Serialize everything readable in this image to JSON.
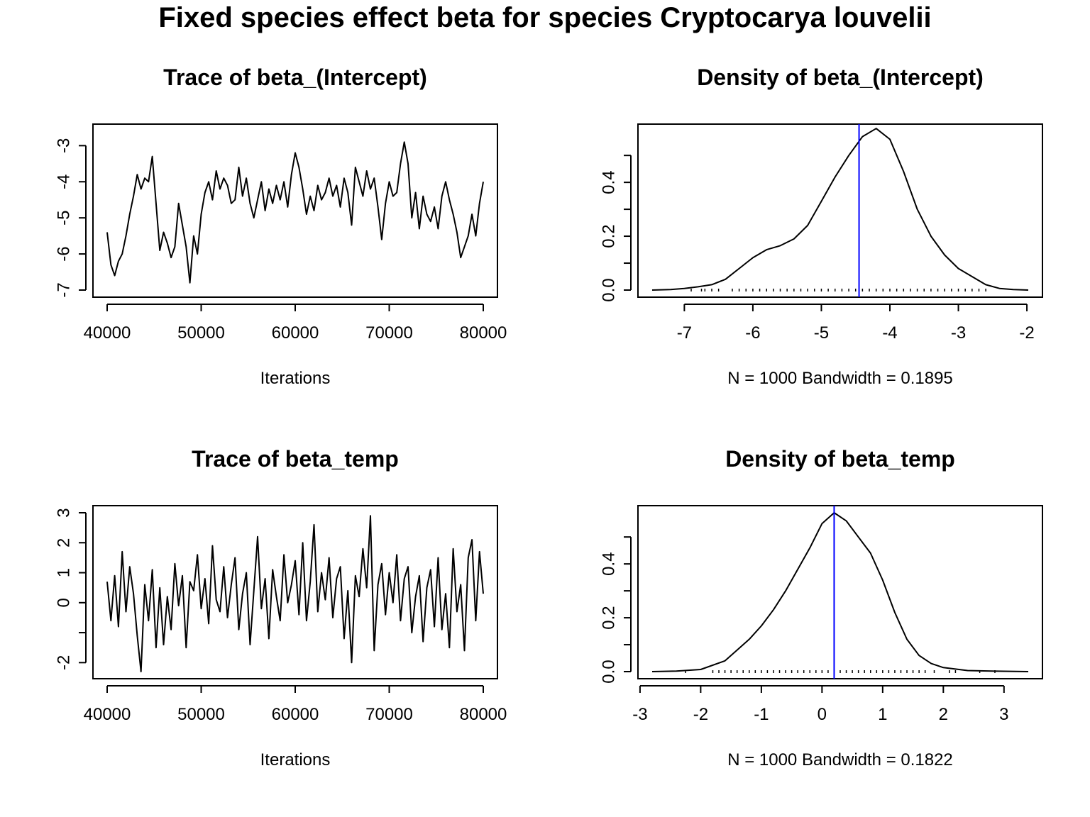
{
  "title": "Fixed species effect beta for species Cryptocarya louvelii",
  "colors": {
    "line": "#000000",
    "mean_line": "#0000ff"
  },
  "chart_data": [
    {
      "id": "trace-intercept",
      "type": "line",
      "title": "Trace of beta_(Intercept)",
      "xlabel": "Iterations",
      "ylabel": "",
      "xlim": [
        40000,
        80000
      ],
      "ylim": [
        -7,
        -2.6
      ],
      "xticks": [
        40000,
        50000,
        60000,
        70000,
        80000
      ],
      "yticks": [
        -7,
        -6,
        -5,
        -4,
        -3
      ],
      "ytick_labels": [
        "-7",
        "-6",
        "-5",
        "-4",
        "-3"
      ],
      "x": [
        40000,
        40400,
        40800,
        41200,
        41600,
        42000,
        42400,
        42800,
        43200,
        43600,
        44000,
        44400,
        44800,
        45200,
        45600,
        46000,
        46400,
        46800,
        47200,
        47600,
        48000,
        48400,
        48800,
        49200,
        49600,
        50000,
        50400,
        50800,
        51200,
        51600,
        52000,
        52400,
        52800,
        53200,
        53600,
        54000,
        54400,
        54800,
        55200,
        55600,
        56000,
        56400,
        56800,
        57200,
        57600,
        58000,
        58400,
        58800,
        59200,
        59600,
        60000,
        60400,
        60800,
        61200,
        61600,
        62000,
        62400,
        62800,
        63200,
        63600,
        64000,
        64400,
        64800,
        65200,
        65600,
        66000,
        66400,
        66800,
        67200,
        67600,
        68000,
        68400,
        68800,
        69200,
        69600,
        70000,
        70400,
        70800,
        71200,
        71600,
        72000,
        72400,
        72800,
        73200,
        73600,
        74000,
        74400,
        74800,
        75200,
        75600,
        76000,
        76400,
        76800,
        77200,
        77600,
        78000,
        78400,
        78800,
        79200,
        79600,
        80000
      ],
      "y": [
        -5.4,
        -6.3,
        -6.6,
        -6.2,
        -6.0,
        -5.5,
        -4.9,
        -4.4,
        -3.8,
        -4.2,
        -3.9,
        -4.0,
        -3.3,
        -4.6,
        -5.9,
        -5.4,
        -5.7,
        -6.1,
        -5.8,
        -4.6,
        -5.2,
        -5.8,
        -6.8,
        -5.5,
        -6.0,
        -4.9,
        -4.3,
        -4.0,
        -4.5,
        -3.7,
        -4.2,
        -3.9,
        -4.1,
        -4.6,
        -4.5,
        -3.6,
        -4.4,
        -3.9,
        -4.6,
        -5.0,
        -4.5,
        -4.0,
        -4.8,
        -4.2,
        -4.6,
        -4.1,
        -4.5,
        -4.0,
        -4.7,
        -3.8,
        -3.2,
        -3.6,
        -4.2,
        -4.9,
        -4.4,
        -4.8,
        -4.1,
        -4.5,
        -4.3,
        -3.9,
        -4.4,
        -4.1,
        -4.7,
        -3.9,
        -4.3,
        -5.2,
        -3.6,
        -4.0,
        -4.4,
        -3.7,
        -4.2,
        -3.9,
        -4.7,
        -5.6,
        -4.6,
        -4.0,
        -4.4,
        -4.3,
        -3.5,
        -2.9,
        -3.5,
        -5.0,
        -4.3,
        -5.3,
        -4.4,
        -4.9,
        -5.1,
        -4.7,
        -5.3,
        -4.4,
        -4.0,
        -4.5,
        -4.9,
        -5.4,
        -6.1,
        -5.8,
        -5.5,
        -4.9,
        -5.5,
        -4.6,
        -4.0
      ]
    },
    {
      "id": "density-intercept",
      "type": "line",
      "title": "Density of beta_(Intercept)",
      "xlabel": "N = 1000   Bandwidth = 0.1895",
      "ylabel": "",
      "xlim": [
        -7.47,
        -1.98
      ],
      "ylim": [
        0,
        0.59
      ],
      "xticks": [
        -7,
        -6,
        -5,
        -4,
        -3,
        -2
      ],
      "yticks": [
        0.0,
        0.1,
        0.2,
        0.3,
        0.4,
        0.5
      ],
      "ytick_labels": [
        "0.0",
        "",
        "0.2",
        "",
        "0.4",
        ""
      ],
      "mean": -4.45,
      "x": [
        -7.47,
        -7.2,
        -7.0,
        -6.8,
        -6.6,
        -6.4,
        -6.2,
        -6.0,
        -5.8,
        -5.6,
        -5.4,
        -5.2,
        -5.0,
        -4.8,
        -4.6,
        -4.4,
        -4.2,
        -4.0,
        -3.8,
        -3.6,
        -3.4,
        -3.2,
        -3.0,
        -2.8,
        -2.6,
        -2.4,
        -2.2,
        -1.98
      ],
      "y": [
        0.0,
        0.002,
        0.006,
        0.012,
        0.02,
        0.04,
        0.08,
        0.12,
        0.15,
        0.165,
        0.19,
        0.24,
        0.33,
        0.42,
        0.5,
        0.57,
        0.6,
        0.56,
        0.44,
        0.3,
        0.2,
        0.13,
        0.08,
        0.05,
        0.02,
        0.006,
        0.002,
        0.0
      ],
      "rug": [
        -6.9,
        -6.75,
        -6.7,
        -6.6,
        -6.5,
        -6.3,
        -6.2,
        -6.1,
        -6.0,
        -5.9,
        -5.8,
        -5.7,
        -5.6,
        -5.5,
        -5.4,
        -5.3,
        -5.2,
        -5.1,
        -5.0,
        -4.9,
        -4.8,
        -4.7,
        -4.6,
        -4.5,
        -4.4,
        -4.3,
        -4.2,
        -4.1,
        -4.0,
        -3.9,
        -3.8,
        -3.7,
        -3.6,
        -3.5,
        -3.4,
        -3.3,
        -3.2,
        -3.1,
        -3.0,
        -2.9,
        -2.8,
        -2.7,
        -2.6
      ]
    },
    {
      "id": "trace-temp",
      "type": "line",
      "title": "Trace of beta_temp",
      "xlabel": "Iterations",
      "ylabel": "",
      "xlim": [
        40000,
        80000
      ],
      "ylim": [
        -2.3,
        3.0
      ],
      "xticks": [
        40000,
        50000,
        60000,
        70000,
        80000
      ],
      "yticks": [
        -2,
        -1,
        0,
        1,
        2,
        3
      ],
      "ytick_labels": [
        "-2",
        "",
        "0",
        "1",
        "2",
        "3"
      ],
      "x": [
        40000,
        40400,
        40800,
        41200,
        41600,
        42000,
        42400,
        42800,
        43200,
        43600,
        44000,
        44400,
        44800,
        45200,
        45600,
        46000,
        46400,
        46800,
        47200,
        47600,
        48000,
        48400,
        48800,
        49200,
        49600,
        50000,
        50400,
        50800,
        51200,
        51600,
        52000,
        52400,
        52800,
        53200,
        53600,
        54000,
        54400,
        54800,
        55200,
        55600,
        56000,
        56400,
        56800,
        57200,
        57600,
        58000,
        58400,
        58800,
        59200,
        59600,
        60000,
        60400,
        60800,
        61200,
        61600,
        62000,
        62400,
        62800,
        63200,
        63600,
        64000,
        64400,
        64800,
        65200,
        65600,
        66000,
        66400,
        66800,
        67200,
        67600,
        68000,
        68400,
        68800,
        69200,
        69600,
        70000,
        70400,
        70800,
        71200,
        71600,
        72000,
        72400,
        72800,
        73200,
        73600,
        74000,
        74400,
        74800,
        75200,
        75600,
        76000,
        76400,
        76800,
        77200,
        77600,
        78000,
        78400,
        78800,
        79200,
        79600,
        80000
      ],
      "y": [
        0.7,
        -0.6,
        0.9,
        -0.8,
        1.7,
        -0.3,
        1.2,
        0.3,
        -1.1,
        -2.3,
        0.6,
        -0.6,
        1.1,
        -1.5,
        0.5,
        -1.4,
        0.2,
        -0.9,
        1.3,
        -0.1,
        0.9,
        -1.5,
        0.7,
        0.4,
        1.6,
        -0.2,
        0.8,
        -0.7,
        1.9,
        0.1,
        -0.3,
        1.2,
        -0.5,
        0.6,
        1.5,
        -0.9,
        0.3,
        1.0,
        -1.4,
        0.4,
        2.2,
        -0.2,
        0.8,
        -1.2,
        1.1,
        0.2,
        -0.6,
        1.6,
        0.0,
        0.6,
        1.4,
        -0.4,
        2.0,
        -0.6,
        0.7,
        2.6,
        -0.3,
        1.0,
        0.1,
        1.5,
        -0.5,
        0.8,
        1.2,
        -1.2,
        0.4,
        -2.0,
        0.9,
        0.2,
        1.8,
        0.5,
        2.9,
        -1.6,
        0.6,
        1.3,
        -0.4,
        1.0,
        0.0,
        1.6,
        -0.6,
        0.8,
        1.2,
        -1.0,
        0.2,
        0.9,
        -1.3,
        0.5,
        1.1,
        -0.8,
        1.5,
        -0.9,
        0.3,
        -1.5,
        1.8,
        -0.3,
        0.6,
        -1.6,
        1.5,
        2.1,
        -0.6,
        1.7,
        0.3
      ]
    },
    {
      "id": "density-temp",
      "type": "line",
      "title": "Density of beta_temp",
      "xlabel": "N = 1000   Bandwidth = 0.1822",
      "ylabel": "",
      "xlim": [
        -2.8,
        3.4
      ],
      "ylim": [
        0,
        0.59
      ],
      "xticks": [
        -3,
        -2,
        -1,
        0,
        1,
        2,
        3
      ],
      "yticks": [
        0.0,
        0.1,
        0.2,
        0.3,
        0.4,
        0.5
      ],
      "ytick_labels": [
        "0.0",
        "",
        "0.2",
        "",
        "0.4",
        ""
      ],
      "mean": 0.2,
      "x": [
        -2.8,
        -2.4,
        -2.0,
        -1.6,
        -1.4,
        -1.2,
        -1.0,
        -0.8,
        -0.6,
        -0.4,
        -0.2,
        0.0,
        0.2,
        0.4,
        0.6,
        0.8,
        1.0,
        1.2,
        1.4,
        1.6,
        1.8,
        2.0,
        2.4,
        2.8,
        3.4
      ],
      "y": [
        0.0,
        0.002,
        0.008,
        0.04,
        0.08,
        0.12,
        0.17,
        0.23,
        0.3,
        0.38,
        0.46,
        0.55,
        0.59,
        0.56,
        0.5,
        0.44,
        0.34,
        0.22,
        0.12,
        0.06,
        0.03,
        0.015,
        0.004,
        0.002,
        0.0
      ],
      "rug": [
        -2.25,
        -1.8,
        -1.7,
        -1.6,
        -1.5,
        -1.4,
        -1.3,
        -1.2,
        -1.1,
        -1.0,
        -0.9,
        -0.8,
        -0.7,
        -0.6,
        -0.5,
        -0.4,
        -0.3,
        -0.2,
        -0.1,
        0.0,
        0.1,
        0.2,
        0.3,
        0.4,
        0.5,
        0.6,
        0.7,
        0.8,
        0.9,
        1.0,
        1.1,
        1.2,
        1.3,
        1.4,
        1.5,
        1.6,
        1.7,
        1.85,
        2.1,
        2.2,
        2.6,
        2.85
      ]
    }
  ]
}
